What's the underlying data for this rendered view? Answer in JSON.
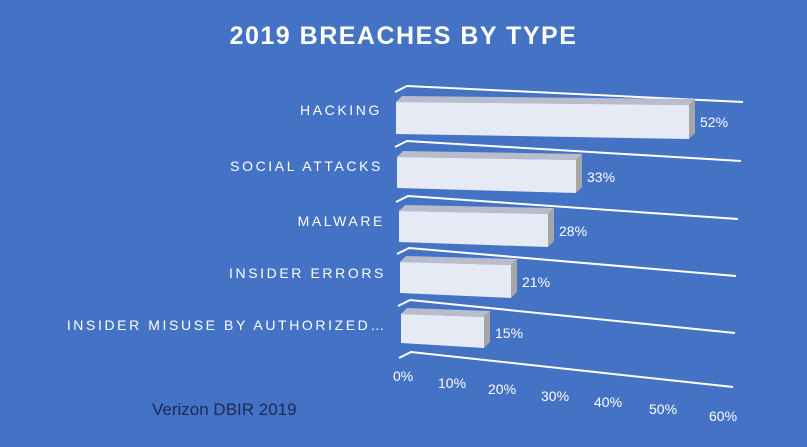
{
  "chart_data": {
    "type": "bar",
    "orientation": "horizontal",
    "style": "3d",
    "title": "2019 BREACHES BY TYPE",
    "categories": [
      "HACKING",
      "SOCIAL ATTACKS",
      "MALWARE",
      "INSIDER ERRORS",
      "INSIDER MISUSE BY AUTHORIZED…"
    ],
    "values": [
      52,
      33,
      28,
      21,
      15
    ],
    "value_labels": [
      "52%",
      "33%",
      "28%",
      "21%",
      "15%"
    ],
    "xlabel": "",
    "ylabel": "",
    "xlim": [
      0,
      60
    ],
    "x_ticks": [
      "0%",
      "10%",
      "20%",
      "30%",
      "40%",
      "50%",
      "60%"
    ],
    "grid": true,
    "legend": null,
    "annotation": "Verizon DBIR 2019"
  },
  "colors": {
    "background": "#4472c4",
    "bar_front": "#e6eaf5",
    "bar_side": "#a6a6a6",
    "gridline": "#ffffff",
    "text": "#ffffff",
    "source_text": "#1a2a5a"
  }
}
